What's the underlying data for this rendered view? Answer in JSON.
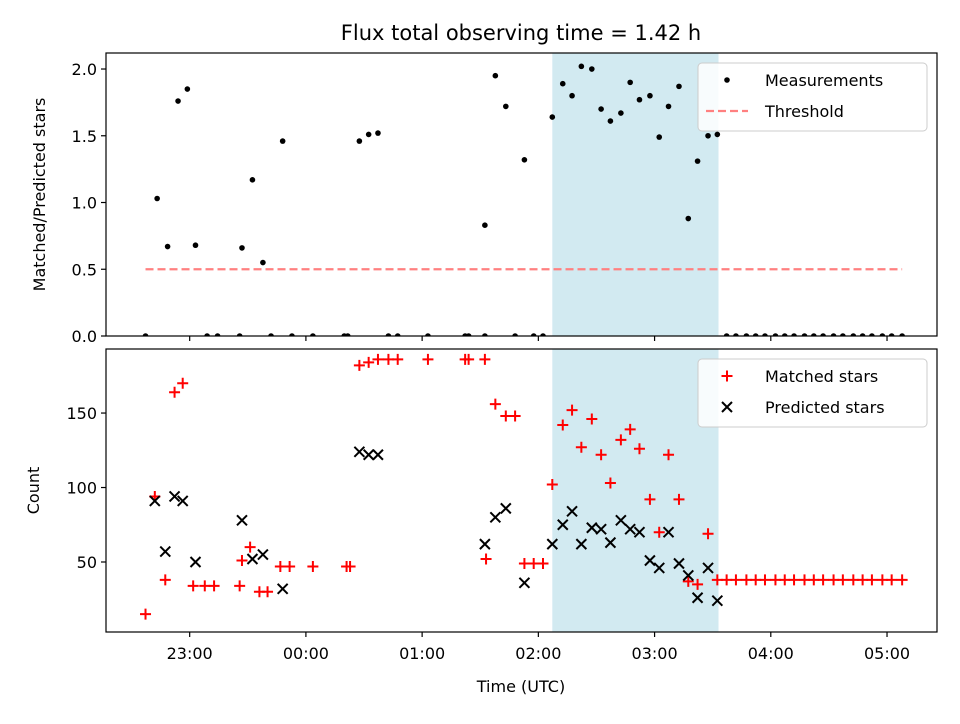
{
  "figure_title": "Flux total observing time = 1.42 h",
  "x_axis_label": "Time (UTC)",
  "x_tick_labels": [
    "23:00",
    "00:00",
    "01:00",
    "02:00",
    "03:00",
    "04:00",
    "05:00"
  ],
  "colors": {
    "measurement": "#000000",
    "threshold": "#ff8080",
    "matched": "#ff0000",
    "predicted": "#000000",
    "highlight": "#add8e6"
  },
  "chart_data": [
    {
      "type": "scatter",
      "name": "ratio-panel",
      "ylabel": "Matched/Predicted stars",
      "ylim": [
        0,
        2.12
      ],
      "yticks": [
        0.0,
        0.5,
        1.0,
        1.5,
        2.0
      ],
      "ytick_labels": [
        "0.0",
        "0.5",
        "1.0",
        "1.5",
        "2.0"
      ],
      "xlim_hours": [
        -1.72,
        5.43
      ],
      "highlight_span_hours": [
        2.12,
        3.55
      ],
      "legend": {
        "location": "upper right",
        "entries": [
          "Measurements",
          "Threshold"
        ]
      },
      "threshold": {
        "name": "Threshold",
        "y": 0.5,
        "x_range_hours": [
          -1.38,
          5.13
        ]
      },
      "series": [
        {
          "name": "Measurements",
          "marker": "dot",
          "points": [
            [
              -1.38,
              0.0
            ],
            [
              -1.28,
              1.03
            ],
            [
              -1.19,
              0.67
            ],
            [
              -1.1,
              1.76
            ],
            [
              -1.02,
              1.85
            ],
            [
              -0.95,
              0.68
            ],
            [
              -0.85,
              0.0
            ],
            [
              -0.76,
              0.0
            ],
            [
              -0.57,
              0.0
            ],
            [
              -0.55,
              0.66
            ],
            [
              -0.46,
              1.17
            ],
            [
              -0.37,
              0.55
            ],
            [
              -0.3,
              0.0
            ],
            [
              -0.2,
              1.46
            ],
            [
              -0.12,
              0.0
            ],
            [
              0.06,
              0.0
            ],
            [
              0.33,
              0.0
            ],
            [
              0.36,
              0.0
            ],
            [
              0.46,
              1.46
            ],
            [
              0.54,
              1.51
            ],
            [
              0.62,
              1.52
            ],
            [
              0.71,
              0.0
            ],
            [
              0.79,
              0.0
            ],
            [
              1.05,
              0.0
            ],
            [
              1.37,
              0.0
            ],
            [
              1.4,
              0.0
            ],
            [
              1.54,
              0.83
            ],
            [
              1.54,
              0.0
            ],
            [
              1.63,
              1.95
            ],
            [
              1.72,
              1.72
            ],
            [
              1.8,
              0.0
            ],
            [
              1.88,
              1.32
            ],
            [
              1.96,
              0.0
            ],
            [
              2.04,
              0.0
            ],
            [
              2.12,
              1.64
            ],
            [
              2.21,
              1.89
            ],
            [
              2.29,
              1.8
            ],
            [
              2.37,
              2.02
            ],
            [
              2.46,
              2.0
            ],
            [
              2.54,
              1.7
            ],
            [
              2.62,
              1.61
            ],
            [
              2.71,
              1.67
            ],
            [
              2.79,
              1.9
            ],
            [
              2.87,
              1.77
            ],
            [
              2.96,
              1.8
            ],
            [
              3.04,
              1.49
            ],
            [
              3.12,
              1.72
            ],
            [
              3.21,
              1.87
            ],
            [
              3.29,
              0.88
            ],
            [
              3.37,
              1.31
            ],
            [
              3.46,
              1.5
            ],
            [
              3.54,
              1.51
            ],
            [
              3.62,
              0.0
            ],
            [
              3.7,
              0.0
            ],
            [
              3.79,
              0.0
            ],
            [
              3.87,
              0.0
            ],
            [
              3.95,
              0.0
            ],
            [
              4.04,
              0.0
            ],
            [
              4.12,
              0.0
            ],
            [
              4.2,
              0.0
            ],
            [
              4.29,
              0.0
            ],
            [
              4.37,
              0.0
            ],
            [
              4.45,
              0.0
            ],
            [
              4.54,
              0.0
            ],
            [
              4.62,
              0.0
            ],
            [
              4.71,
              0.0
            ],
            [
              4.79,
              0.0
            ],
            [
              4.87,
              0.0
            ],
            [
              4.96,
              0.0
            ],
            [
              5.04,
              0.0
            ],
            [
              5.13,
              0.0
            ]
          ]
        }
      ]
    },
    {
      "type": "scatter",
      "name": "count-panel",
      "ylabel": "Count",
      "ylim": [
        3,
        193
      ],
      "yticks": [
        50,
        100,
        150
      ],
      "ytick_labels": [
        "50",
        "100",
        "150"
      ],
      "xlim_hours": [
        -1.72,
        5.43
      ],
      "highlight_span_hours": [
        2.12,
        3.55
      ],
      "legend": {
        "location": "upper right",
        "entries": [
          "Matched stars",
          "Predicted stars"
        ]
      },
      "series": [
        {
          "name": "Matched stars",
          "marker": "plus",
          "points": [
            [
              -1.38,
              15
            ],
            [
              -1.3,
              94
            ],
            [
              -1.21,
              38
            ],
            [
              -1.13,
              164
            ],
            [
              -1.06,
              170
            ],
            [
              -0.97,
              34
            ],
            [
              -0.87,
              34
            ],
            [
              -0.79,
              34
            ],
            [
              -0.57,
              34
            ],
            [
              -0.55,
              51
            ],
            [
              -0.48,
              60
            ],
            [
              -0.4,
              30
            ],
            [
              -0.33,
              30
            ],
            [
              -0.22,
              47
            ],
            [
              -0.14,
              47
            ],
            [
              0.06,
              47
            ],
            [
              0.35,
              47
            ],
            [
              0.38,
              47
            ],
            [
              0.46,
              182
            ],
            [
              0.54,
              184
            ],
            [
              0.62,
              186
            ],
            [
              0.71,
              186
            ],
            [
              0.79,
              186
            ],
            [
              1.05,
              186
            ],
            [
              1.37,
              186
            ],
            [
              1.4,
              186
            ],
            [
              1.54,
              186
            ],
            [
              1.55,
              52
            ],
            [
              1.63,
              156
            ],
            [
              1.72,
              148
            ],
            [
              1.8,
              148
            ],
            [
              1.88,
              49
            ],
            [
              1.96,
              49
            ],
            [
              2.04,
              49
            ],
            [
              2.12,
              102
            ],
            [
              2.21,
              142
            ],
            [
              2.29,
              152
            ],
            [
              2.37,
              127
            ],
            [
              2.46,
              146
            ],
            [
              2.54,
              122
            ],
            [
              2.62,
              103
            ],
            [
              2.71,
              132
            ],
            [
              2.79,
              139
            ],
            [
              2.87,
              126
            ],
            [
              2.96,
              92
            ],
            [
              3.04,
              70
            ],
            [
              3.12,
              122
            ],
            [
              3.21,
              92
            ],
            [
              3.29,
              37
            ],
            [
              3.37,
              35
            ],
            [
              3.46,
              69
            ],
            [
              3.54,
              38
            ],
            [
              3.62,
              38
            ],
            [
              3.7,
              38
            ],
            [
              3.79,
              38
            ],
            [
              3.87,
              38
            ],
            [
              3.95,
              38
            ],
            [
              4.04,
              38
            ],
            [
              4.12,
              38
            ],
            [
              4.2,
              38
            ],
            [
              4.29,
              38
            ],
            [
              4.37,
              38
            ],
            [
              4.45,
              38
            ],
            [
              4.54,
              38
            ],
            [
              4.62,
              38
            ],
            [
              4.71,
              38
            ],
            [
              4.79,
              38
            ],
            [
              4.87,
              38
            ],
            [
              4.96,
              38
            ],
            [
              5.04,
              38
            ],
            [
              5.13,
              38
            ]
          ]
        },
        {
          "name": "Predicted stars",
          "marker": "x",
          "points": [
            [
              -1.3,
              91
            ],
            [
              -1.21,
              57
            ],
            [
              -1.13,
              94
            ],
            [
              -1.06,
              91
            ],
            [
              -0.95,
              50
            ],
            [
              -0.55,
              78
            ],
            [
              -0.46,
              52
            ],
            [
              -0.37,
              55
            ],
            [
              -0.2,
              32
            ],
            [
              0.46,
              124
            ],
            [
              0.54,
              122
            ],
            [
              0.62,
              122
            ],
            [
              1.54,
              62
            ],
            [
              1.63,
              80
            ],
            [
              1.72,
              86
            ],
            [
              1.88,
              36
            ],
            [
              2.12,
              62
            ],
            [
              2.21,
              75
            ],
            [
              2.29,
              84
            ],
            [
              2.37,
              62
            ],
            [
              2.46,
              73
            ],
            [
              2.54,
              72
            ],
            [
              2.62,
              63
            ],
            [
              2.71,
              78
            ],
            [
              2.79,
              72
            ],
            [
              2.87,
              70
            ],
            [
              2.96,
              51
            ],
            [
              3.04,
              46
            ],
            [
              3.12,
              70
            ],
            [
              3.21,
              49
            ],
            [
              3.29,
              41
            ],
            [
              3.37,
              26
            ],
            [
              3.46,
              46
            ],
            [
              3.54,
              24
            ]
          ]
        }
      ]
    }
  ]
}
